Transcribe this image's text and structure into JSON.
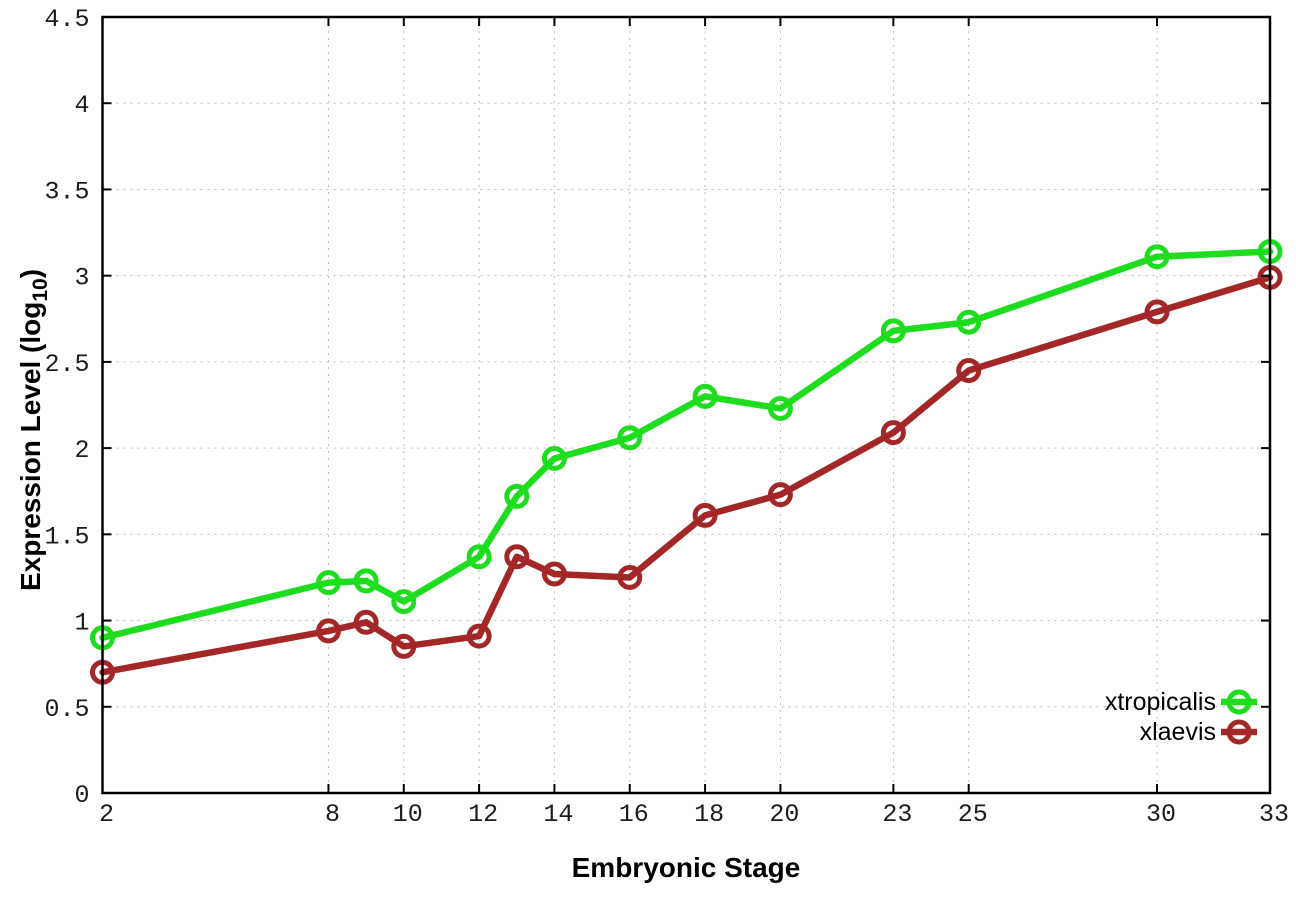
{
  "page": {
    "background": "#ffffff"
  },
  "chart_data": {
    "type": "line",
    "title": "",
    "xlabel": "Embryonic Stage",
    "ylabel": {
      "main": "Expression Level (log",
      "sub": "10",
      "end": ")"
    },
    "xlim": [
      2,
      33
    ],
    "ylim": [
      0,
      4.5
    ],
    "xticks": [
      2,
      8,
      10,
      12,
      14,
      16,
      18,
      20,
      23,
      25,
      30,
      33
    ],
    "yticks": [
      0,
      0.5,
      1,
      1.5,
      2,
      2.5,
      3,
      3.5,
      4,
      4.5
    ],
    "grid": true,
    "legend_position": "inside-bottom-right",
    "x": [
      2,
      8,
      9,
      10,
      12,
      13,
      14,
      16,
      18,
      20,
      23,
      25,
      30,
      33
    ],
    "series": [
      {
        "name": "xtropicalis",
        "color": "#1edd1e",
        "marker": "open-circle",
        "values": [
          0.9,
          1.22,
          1.23,
          1.11,
          1.37,
          1.72,
          1.94,
          2.06,
          2.3,
          2.23,
          2.68,
          2.73,
          3.11,
          3.14
        ]
      },
      {
        "name": "xlaevis",
        "color": "#a32727",
        "marker": "open-circle",
        "values": [
          0.7,
          0.94,
          0.99,
          0.85,
          0.91,
          1.37,
          1.27,
          1.25,
          1.61,
          1.73,
          2.09,
          2.45,
          2.79,
          2.99
        ]
      }
    ],
    "colors": {
      "axis": "#000000",
      "grid": "#bcbcbc",
      "tick_label": "#1c1c1c"
    }
  }
}
